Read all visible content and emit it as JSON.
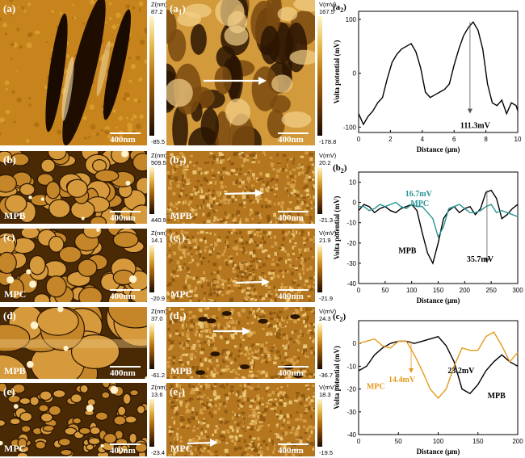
{
  "figure": {
    "bg": "#ffffff",
    "afm_colors": [
      "#1a0a00",
      "#6b3a05",
      "#b5700f",
      "#e6b94a",
      "#fff6d0"
    ],
    "scale_bar_label": "400nm",
    "topography_panels": [
      {
        "id": "a",
        "label": "(a)",
        "sample": "",
        "colorbar_unit": "Z(nm)",
        "colorbar_max": "87.2",
        "colorbar_min": "-85.5"
      },
      {
        "id": "b",
        "label": "(b)",
        "sample": "MPB",
        "colorbar_unit": "Z(nm)",
        "colorbar_max": "509.5",
        "colorbar_min": "440.9"
      },
      {
        "id": "c",
        "label": "(c)",
        "sample": "MPC",
        "colorbar_unit": "Z(nm)",
        "colorbar_max": "14.1",
        "colorbar_min": "-20.9"
      },
      {
        "id": "d",
        "label": "(d)",
        "sample": "MPB",
        "colorbar_unit": "Z(nm)",
        "colorbar_max": "37.0",
        "colorbar_min": "-61.2"
      },
      {
        "id": "e",
        "label": "(e)",
        "sample": "MPC",
        "colorbar_unit": "Z(nm)",
        "colorbar_max": "13.6",
        "colorbar_min": "-23.4"
      }
    ],
    "potential_panels": [
      {
        "id": "a1",
        "label": "(a",
        "sub": "1",
        "sample": "",
        "colorbar_unit": "V(mV)",
        "colorbar_max": "167.5",
        "colorbar_min": "-178.8"
      },
      {
        "id": "b1",
        "label": "(b",
        "sub": "1",
        "sample": "MPB",
        "colorbar_unit": "V(mV)",
        "colorbar_max": "20.2",
        "colorbar_min": "-21.3"
      },
      {
        "id": "c1",
        "label": "(c",
        "sub": "1",
        "sample": "MPC",
        "colorbar_unit": "V(mV)",
        "colorbar_max": "21.9",
        "colorbar_min": "-21.9"
      },
      {
        "id": "d1",
        "label": "(d",
        "sub": "1",
        "sample": "MPB",
        "colorbar_unit": "V(mV)",
        "colorbar_max": "24.3",
        "colorbar_min": "-36.7"
      },
      {
        "id": "e1",
        "label": "(e",
        "sub": "1",
        "sample": "MPC",
        "colorbar_unit": "V(mV)",
        "colorbar_max": "18.3",
        "colorbar_min": "-19.5"
      }
    ]
  },
  "chart_data": [
    {
      "type": "line",
      "panel_label": "(a",
      "panel_sub": "2",
      "xlabel": "Distance (μm)",
      "ylabel": "Volta potential (mV)",
      "xlim": [
        0,
        10
      ],
      "ylim": [
        -110,
        115
      ],
      "xticks": [
        0,
        2,
        4,
        6,
        8,
        10
      ],
      "yticks": [
        -100,
        0,
        100
      ],
      "series": [
        {
          "name": "",
          "color": "#000000",
          "x": [
            0,
            0.3,
            0.6,
            0.9,
            1.2,
            1.5,
            1.8,
            2.1,
            2.4,
            2.7,
            3.0,
            3.3,
            3.6,
            3.9,
            4.2,
            4.5,
            4.8,
            5.1,
            5.4,
            5.7,
            6.0,
            6.3,
            6.6,
            6.9,
            7.2,
            7.5,
            7.8,
            8.1,
            8.4,
            8.7,
            9.0,
            9.3,
            9.6,
            9.9,
            10.0
          ],
          "y": [
            -75,
            -95,
            -80,
            -70,
            -55,
            -45,
            -10,
            20,
            35,
            45,
            50,
            55,
            40,
            10,
            -35,
            -45,
            -40,
            -35,
            -30,
            -20,
            15,
            45,
            70,
            85,
            95,
            80,
            45,
            -20,
            -55,
            -60,
            -50,
            -75,
            -55,
            -60,
            -70
          ]
        }
      ],
      "annotations": [
        {
          "text": "111.3mV",
          "x": 7.0,
          "y_top": 95,
          "y_bottom": -75
        }
      ]
    },
    {
      "type": "line",
      "panel_label": "(b",
      "panel_sub": "2",
      "xlabel": "Distance (μm)",
      "ylabel": "Volta potential (mV)",
      "xlim": [
        0,
        300
      ],
      "ylim": [
        -40,
        15
      ],
      "xticks": [
        0,
        50,
        100,
        150,
        200,
        250,
        300
      ],
      "yticks": [
        -40,
        -30,
        -20,
        -10,
        0,
        10
      ],
      "series": [
        {
          "name": "MPB",
          "color": "#000000",
          "x": [
            0,
            10,
            20,
            30,
            40,
            50,
            60,
            70,
            80,
            90,
            100,
            110,
            120,
            130,
            140,
            150,
            160,
            170,
            180,
            190,
            200,
            210,
            220,
            230,
            240,
            250,
            260,
            270,
            280,
            290,
            300
          ],
          "y": [
            -4,
            -1,
            -2,
            -5,
            -3,
            -2,
            -4,
            -5,
            -3,
            -2,
            -1,
            -4,
            -15,
            -25,
            -30,
            -20,
            -8,
            -4,
            -2,
            -5,
            -3,
            -2,
            -6,
            -3,
            5,
            6,
            2,
            -8,
            -6,
            -3,
            -1
          ]
        },
        {
          "name": "MPC",
          "color": "#2a9494",
          "x": [
            0,
            10,
            20,
            30,
            40,
            50,
            60,
            70,
            80,
            90,
            100,
            110,
            120,
            130,
            140,
            150,
            160,
            170,
            180,
            190,
            200,
            210,
            220,
            230,
            240,
            250,
            260,
            270,
            280,
            290,
            300
          ],
          "y": [
            -2,
            -2,
            -4,
            -3,
            -1,
            -2,
            -1,
            0,
            -2,
            -3,
            -1,
            -2,
            -2,
            -5,
            -8,
            -17,
            -12,
            -3,
            -2,
            -1,
            -3,
            -5,
            -5,
            -4,
            -2,
            -1,
            -5,
            -4,
            -5,
            -6,
            -7
          ]
        }
      ],
      "annotations": [
        {
          "text": "16.7mV",
          "series": "MPC"
        },
        {
          "text": "35.7mV",
          "series": "MPB",
          "x": 242,
          "y_top": 6,
          "y_bottom": -30
        }
      ]
    },
    {
      "type": "line",
      "panel_label": "(c",
      "panel_sub": "2",
      "xlabel": "Distance (μm)",
      "ylabel": "Volta potential (mV)",
      "xlim": [
        0,
        200
      ],
      "ylim": [
        -40,
        10
      ],
      "xticks": [
        0,
        50,
        100,
        150,
        200
      ],
      "yticks": [
        -40,
        -30,
        -20,
        -10,
        0
      ],
      "series": [
        {
          "name": "MPB",
          "color": "#000000",
          "x": [
            0,
            10,
            20,
            30,
            40,
            50,
            60,
            70,
            80,
            90,
            100,
            110,
            120,
            130,
            140,
            150,
            160,
            170,
            180,
            190,
            200
          ],
          "y": [
            -12,
            -10,
            -5,
            -2,
            0,
            1,
            1,
            0,
            1,
            2,
            3,
            -1,
            -8,
            -20,
            -22,
            -18,
            -12,
            -8,
            -5,
            -8,
            -10
          ]
        },
        {
          "name": "MPC",
          "color": "#e39a1b",
          "x": [
            0,
            10,
            20,
            30,
            40,
            50,
            60,
            70,
            80,
            90,
            100,
            110,
            120,
            130,
            140,
            150,
            160,
            170,
            180,
            190,
            200
          ],
          "y": [
            0,
            1,
            2,
            -1,
            -2,
            1,
            1,
            -5,
            -12,
            -20,
            -24,
            -20,
            -10,
            -2,
            -3,
            -3,
            3,
            5,
            -1,
            -8,
            -4
          ]
        }
      ],
      "annotations": [
        {
          "text": "23.2mV",
          "series": "MPB"
        },
        {
          "text": "14.4mV",
          "series": "MPC",
          "x": 66,
          "y_top": 1,
          "y_bottom": -13
        }
      ]
    }
  ]
}
